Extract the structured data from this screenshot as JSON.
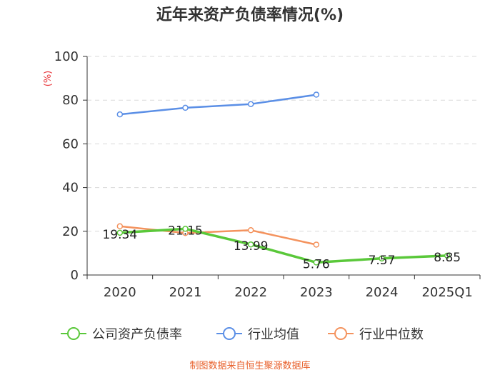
{
  "chart_data": {
    "type": "line",
    "title": "近年来资产负债率情况(%)",
    "ylabel": "(%)",
    "xlabel": "",
    "ylim": [
      0,
      100
    ],
    "yticks": [
      0,
      20,
      40,
      60,
      80,
      100
    ],
    "grid": true,
    "categories": [
      "2020",
      "2021",
      "2022",
      "2023",
      "2024",
      "2025Q1"
    ],
    "series": [
      {
        "name": "公司资产负债率",
        "color": "#5ac83a",
        "values": [
          19.34,
          21.15,
          13.99,
          5.76,
          7.57,
          8.85
        ],
        "labels": [
          "19.34",
          "21.15",
          "13.99",
          "5.76",
          "7.57",
          "8.85"
        ]
      },
      {
        "name": "行业均值",
        "color": "#5b8fe6",
        "values": [
          73.5,
          76.5,
          78.2,
          82.5,
          null,
          null
        ]
      },
      {
        "name": "行业中位数",
        "color": "#f4935e",
        "values": [
          22.3,
          19.2,
          20.5,
          13.9,
          null,
          null
        ]
      }
    ],
    "legend_position": "bottom"
  },
  "source": "制图数据来自恒生聚源数据库"
}
